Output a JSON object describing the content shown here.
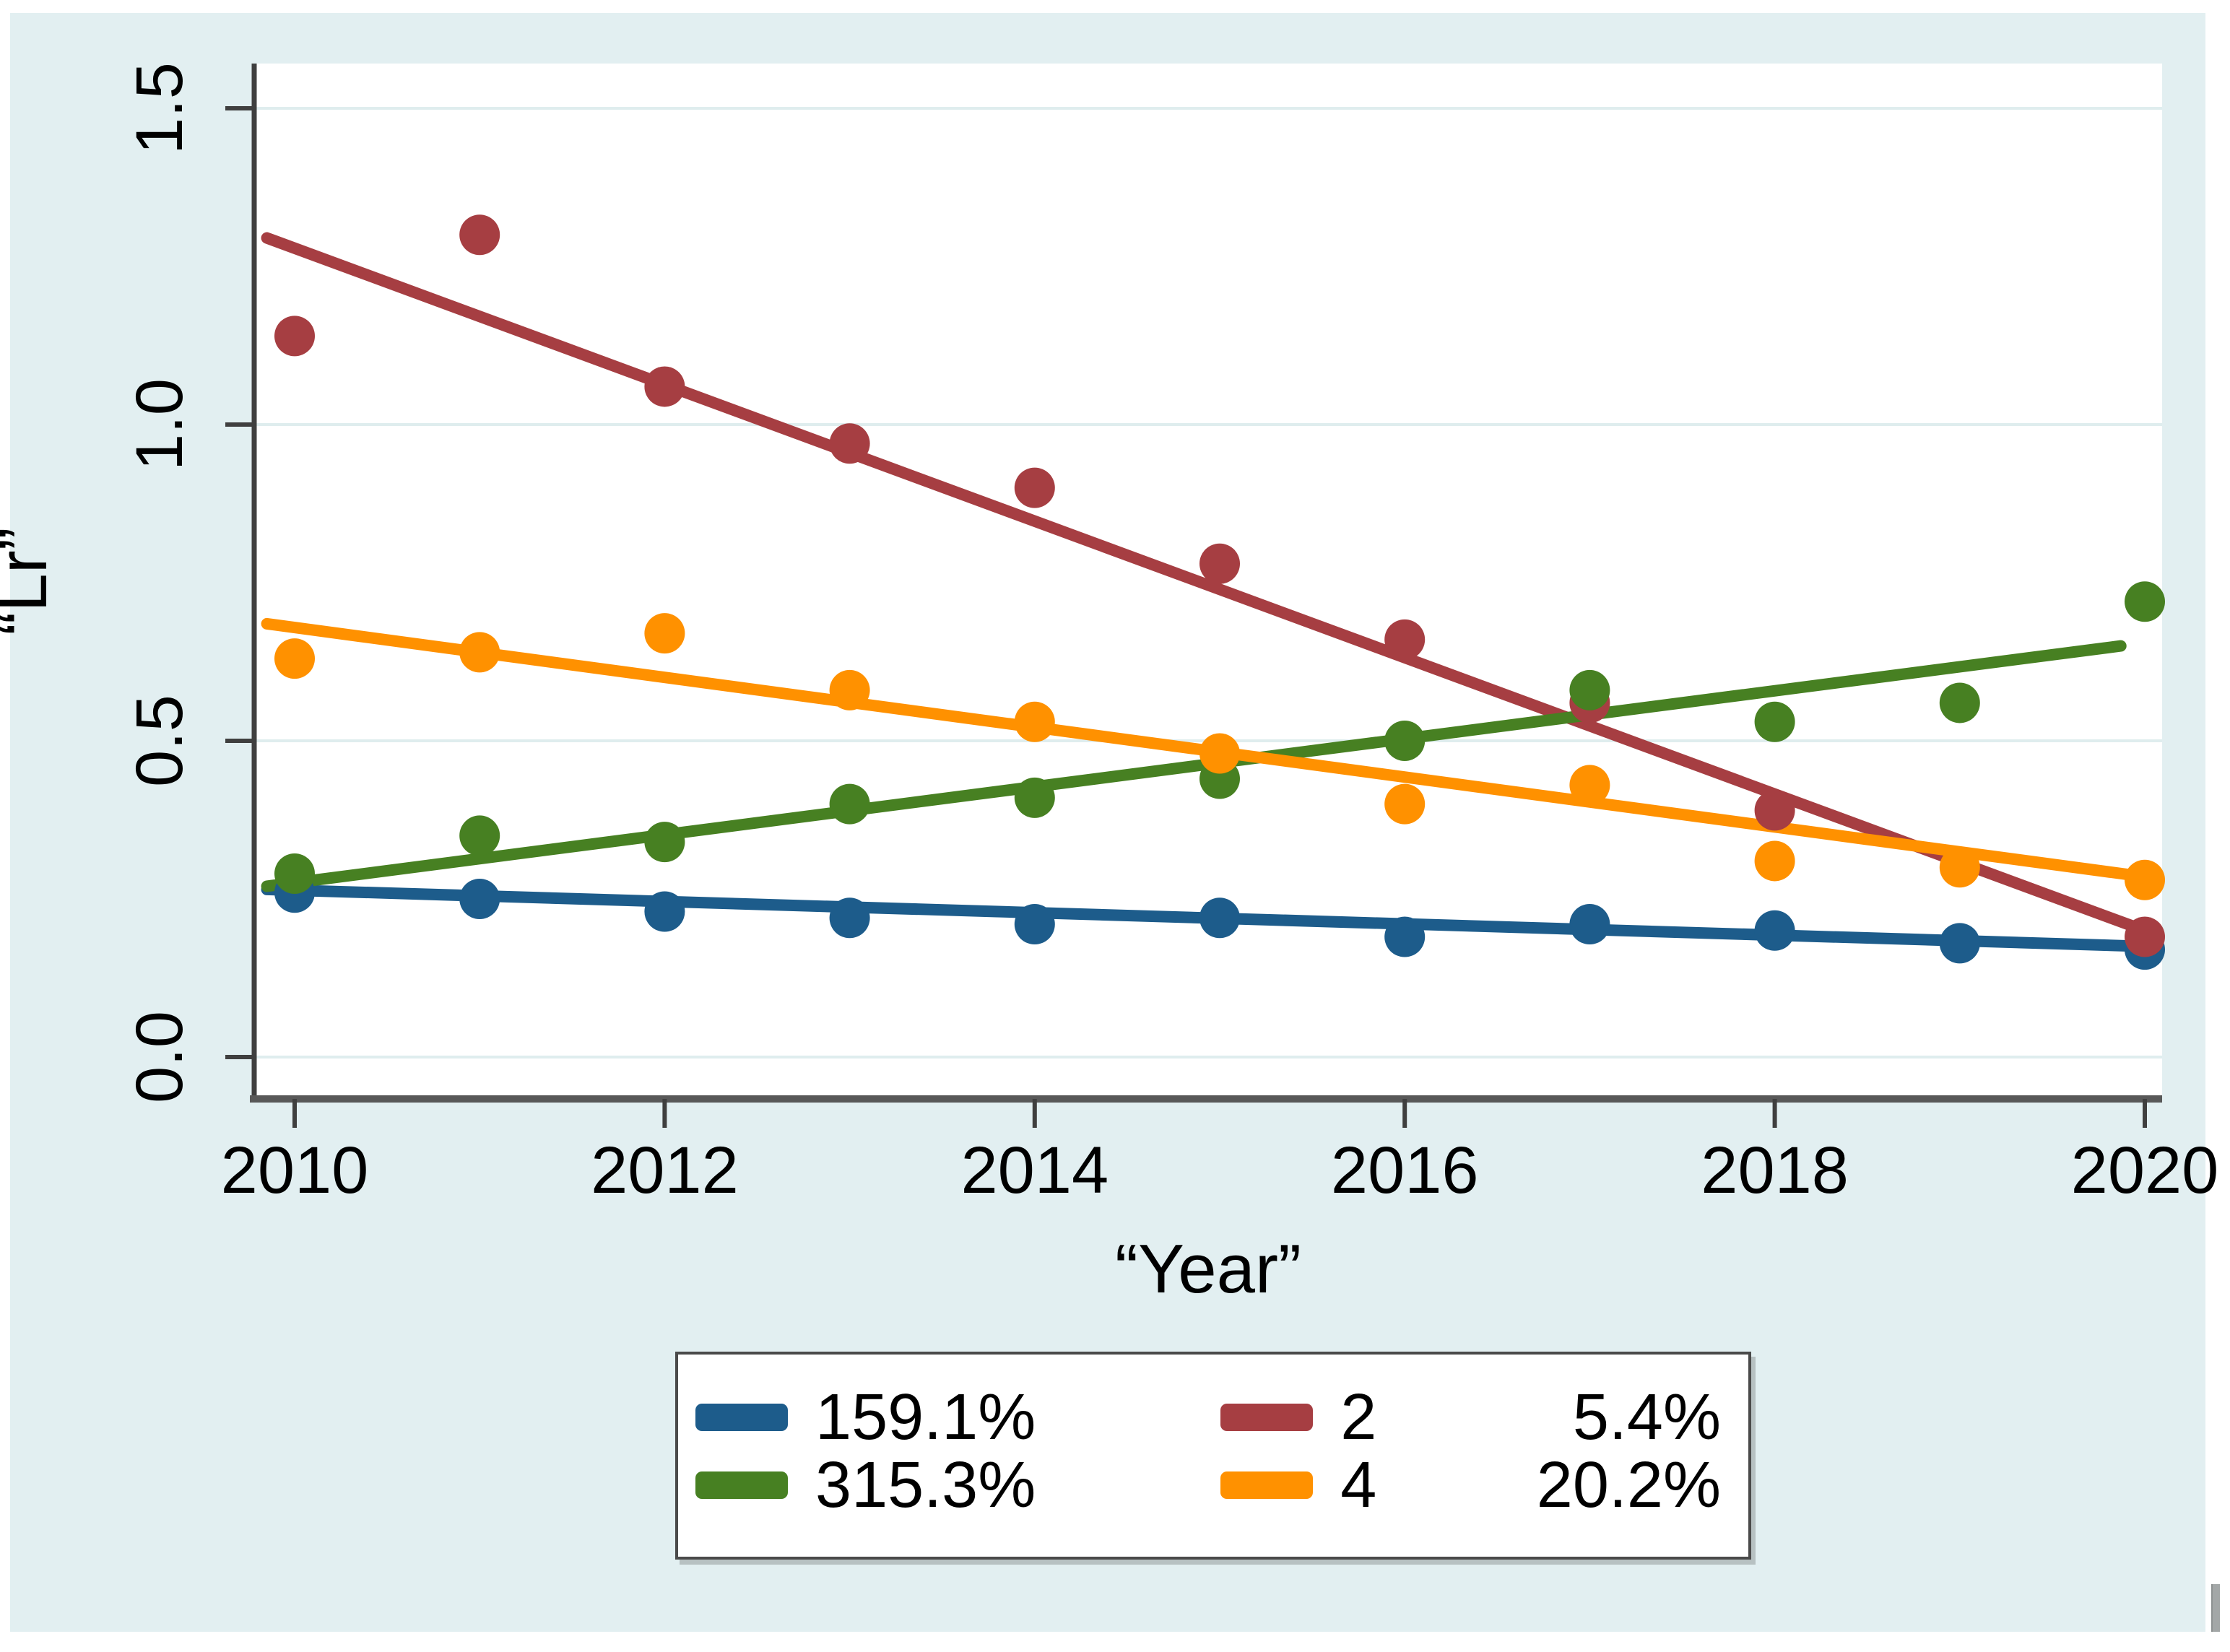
{
  "page": {
    "background": "#ffffff",
    "region_bg": "#e2eff1",
    "plot_bg": "#ffffff",
    "grid_color": "#dfedee",
    "axis_color": "#3f3f3f",
    "axis_bottom_color": "#585858",
    "text_color": "#000000",
    "edge_artifact_color": "#a3a7a7"
  },
  "chart_data": {
    "type": "scatter",
    "title": "",
    "xlabel": "“Year”",
    "ylabel": "“Lr”",
    "x_ticks": [
      2010,
      2012,
      2014,
      2016,
      2018,
      2020
    ],
    "x_tick_labels": [
      "2010",
      "2012",
      "2014",
      "2016",
      "2018",
      "2020"
    ],
    "y_ticks": [
      0.0,
      0.5,
      1.0,
      1.5
    ],
    "y_tick_labels": [
      "0.0",
      "0.5",
      "1.0",
      "1.5"
    ],
    "xlim": [
      2009.78,
      2020.1
    ],
    "ylim": [
      -0.07,
      1.57
    ],
    "grid": "horizontal",
    "legend_position": "bottom-center",
    "x": [
      2010,
      2011,
      2012,
      2013,
      2014,
      2015,
      2016,
      2017,
      2018,
      2019,
      2020
    ],
    "series": [
      {
        "name": "1",
        "percent": "59.1%",
        "color": "#1d5c8b",
        "values": [
          0.26,
          0.25,
          0.23,
          0.22,
          0.21,
          0.22,
          0.19,
          0.21,
          0.2,
          0.18,
          0.17
        ],
        "trend": {
          "x1": 2009.85,
          "y1": 0.265,
          "x2": 2020,
          "y2": 0.175
        }
      },
      {
        "name": "2",
        "percent": "5.4%",
        "color": "#a63e42",
        "values": [
          1.14,
          1.3,
          1.06,
          0.97,
          0.9,
          0.78,
          0.66,
          0.56,
          0.39,
          null,
          0.19
        ],
        "trend": {
          "x1": 2009.85,
          "y1": 1.295,
          "x2": 2020,
          "y2": 0.2
        }
      },
      {
        "name": "3",
        "percent": "15.3%",
        "color": "#478022",
        "values": [
          0.29,
          0.35,
          0.34,
          0.4,
          0.41,
          0.44,
          0.5,
          0.58,
          0.53,
          0.56,
          0.72
        ],
        "trend": {
          "x1": 2009.85,
          "y1": 0.27,
          "x2": 2019.87,
          "y2": 0.65
        }
      },
      {
        "name": "4",
        "percent": "20.2%",
        "color": "#ff9100",
        "values": [
          0.63,
          0.64,
          0.67,
          0.58,
          0.53,
          0.48,
          0.4,
          0.43,
          0.31,
          0.3,
          0.28
        ],
        "trend": {
          "x1": 2009.85,
          "y1": 0.685,
          "x2": 2020,
          "y2": 0.285
        }
      }
    ]
  }
}
